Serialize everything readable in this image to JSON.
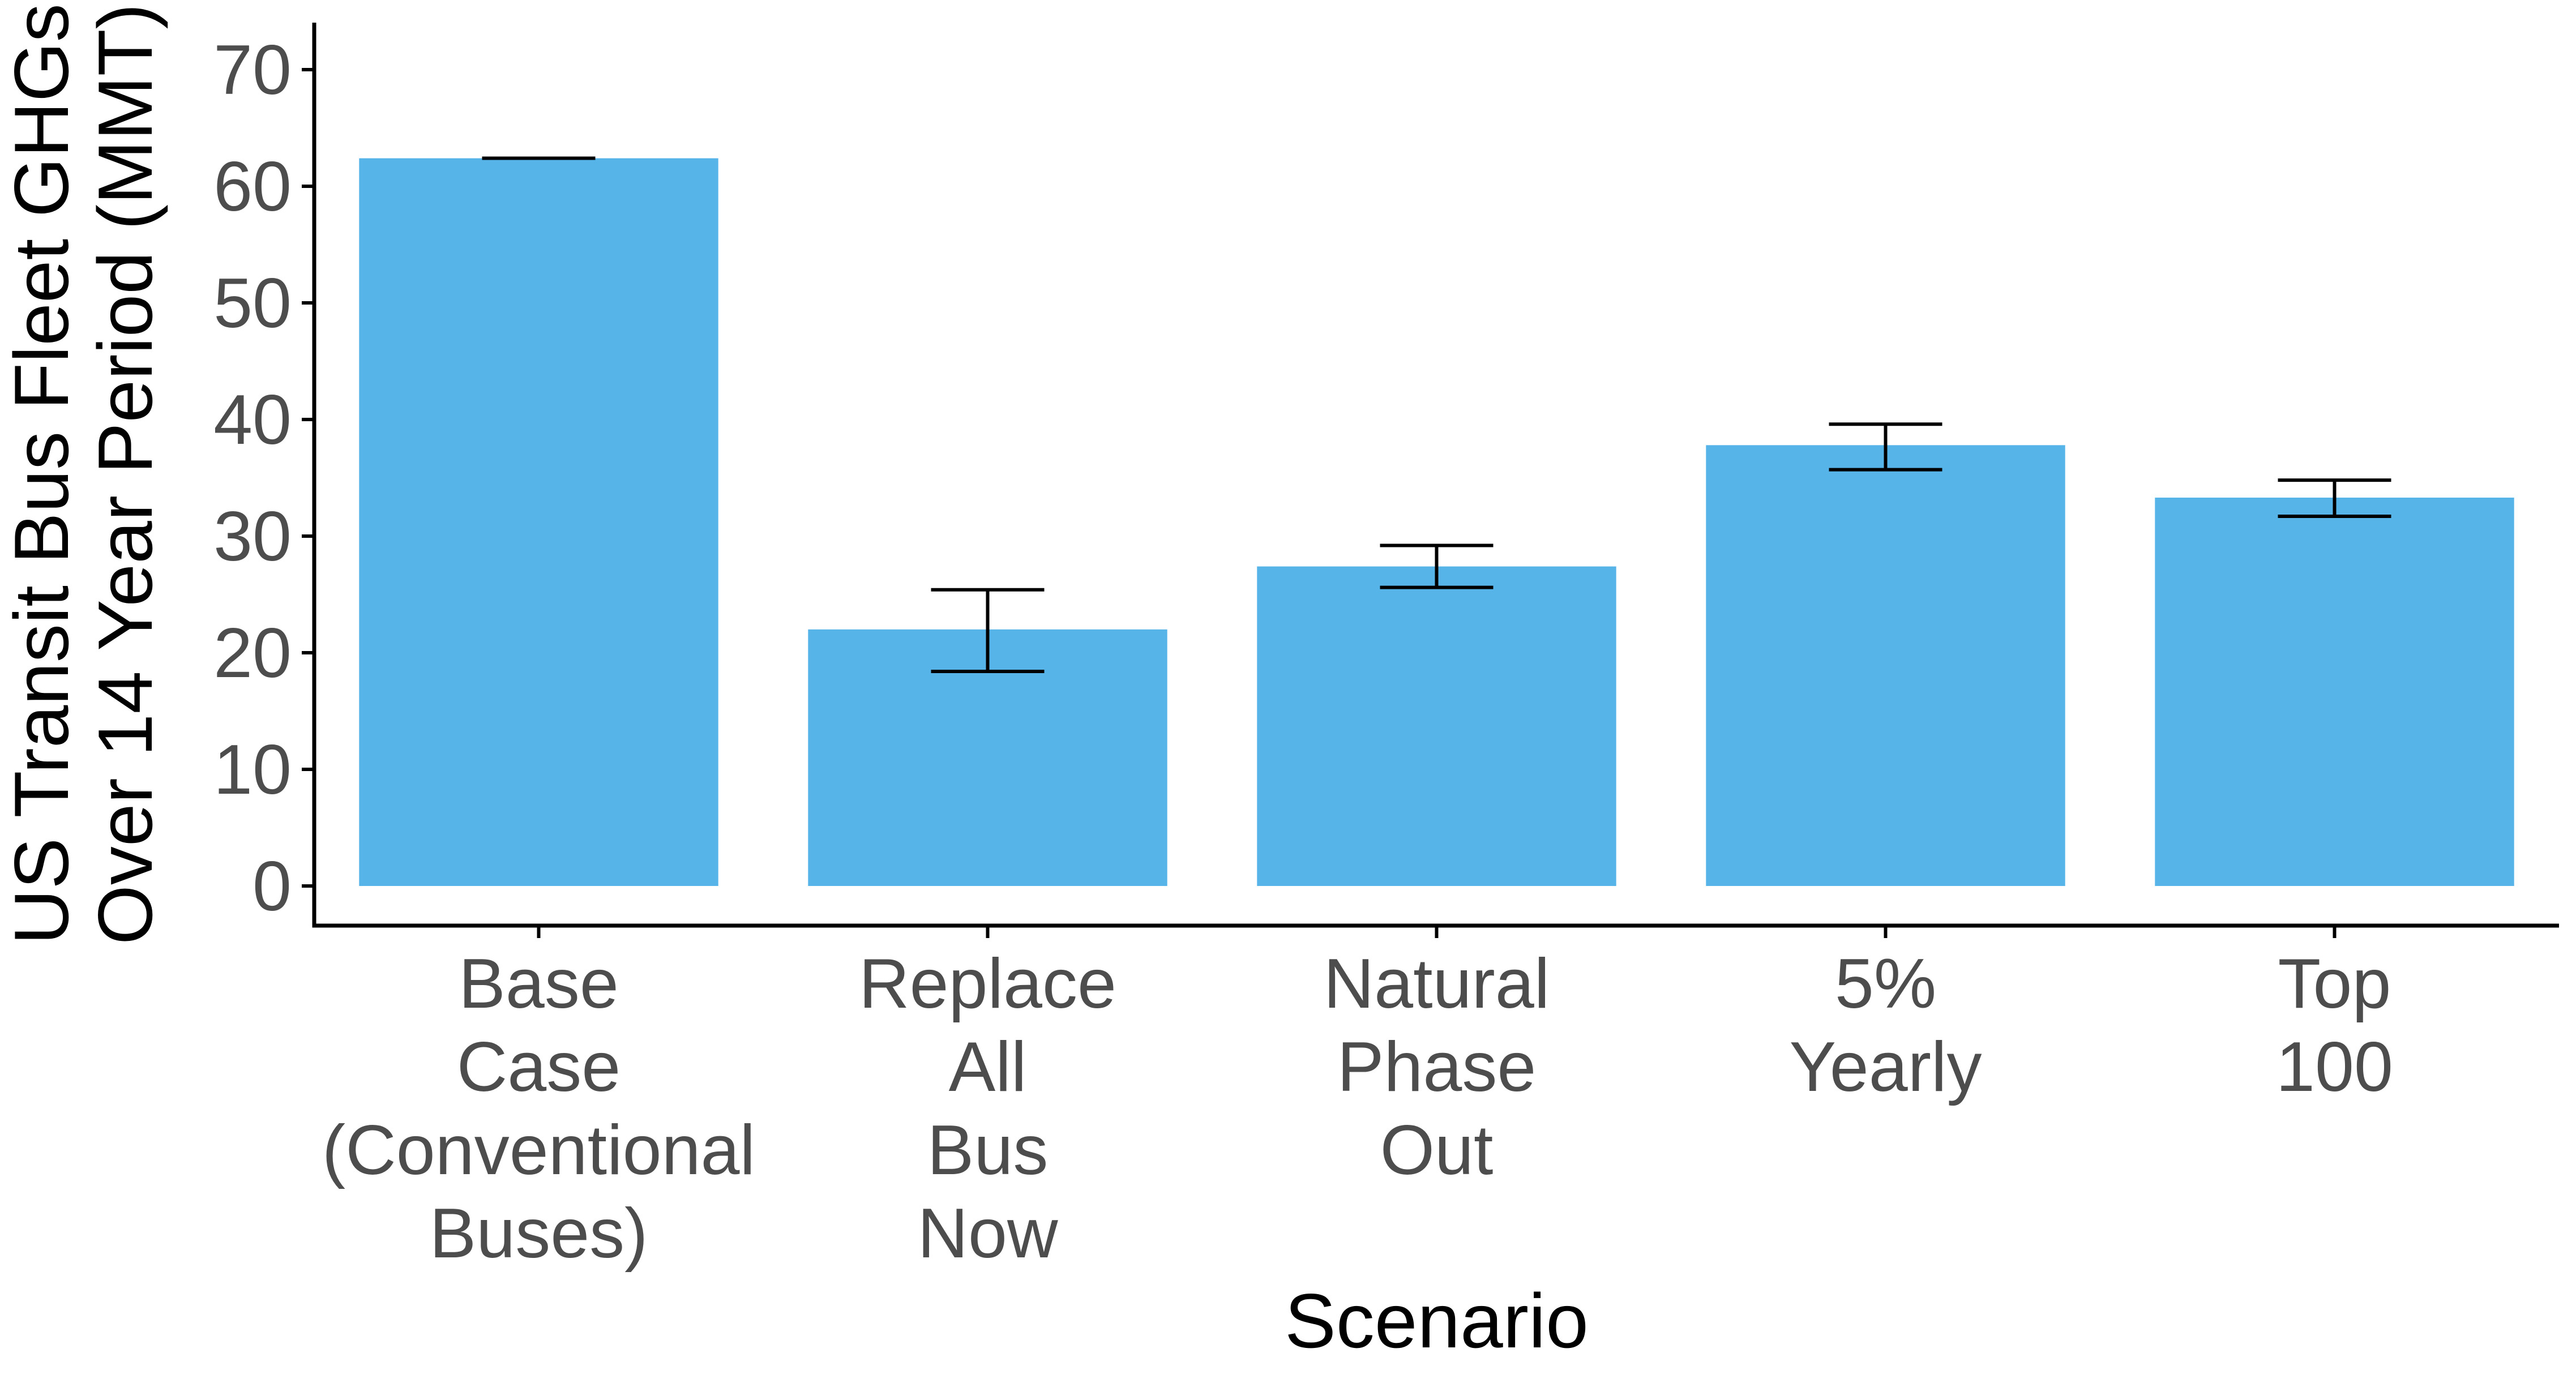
{
  "chart_data": {
    "type": "bar",
    "title": "",
    "xlabel": "Scenario",
    "ylabel_lines": [
      "US Transit Bus Fleet GHGs",
      "Over 14 Year Period (MMT)"
    ],
    "ylim": [
      0,
      72
    ],
    "yticks": [
      0,
      10,
      20,
      30,
      40,
      50,
      60,
      70
    ],
    "categories": [
      [
        "Base",
        "Case",
        "(Conventional",
        "Buses)"
      ],
      [
        "Replace",
        "All",
        "Bus",
        "Now"
      ],
      [
        "Natural",
        "Phase",
        "Out"
      ],
      [
        "5%",
        "Yearly"
      ],
      [
        "Top",
        "100"
      ]
    ],
    "values": [
      62.4,
      22.0,
      27.4,
      37.8,
      33.3
    ],
    "error_low": [
      62.4,
      18.4,
      25.6,
      35.7,
      31.7
    ],
    "error_high": [
      62.4,
      25.4,
      29.2,
      39.6,
      34.8
    ],
    "bar_color": "#56b4e9",
    "grid": false,
    "legend": "none"
  }
}
